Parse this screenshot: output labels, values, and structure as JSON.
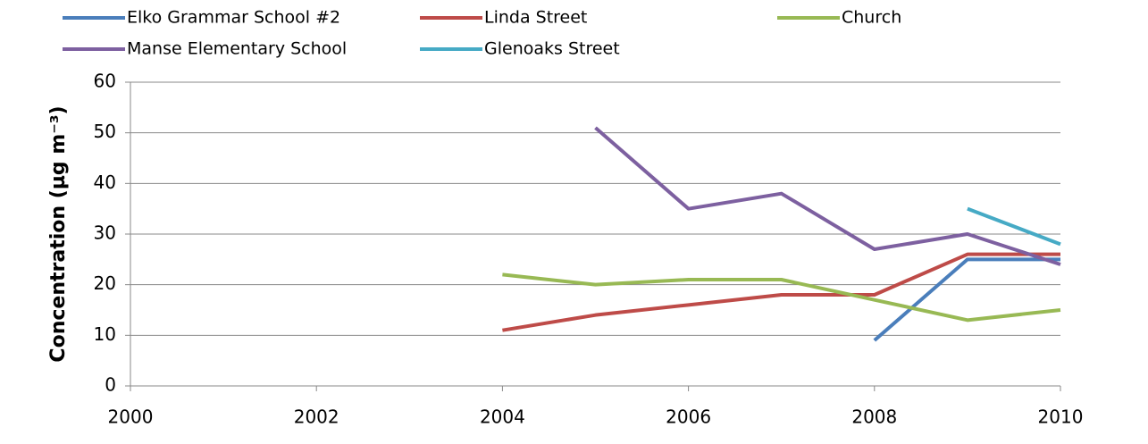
{
  "chart_data": {
    "type": "line",
    "ylabel": "Concentration (µg m⁻³)",
    "x": [
      2004,
      2005,
      2006,
      2007,
      2008,
      2009,
      2010
    ],
    "series": [
      {
        "name": "Elko Grammar School #2",
        "color": "#4a7ebb",
        "values": [
          null,
          null,
          null,
          null,
          9,
          25,
          25
        ]
      },
      {
        "name": "Linda Street",
        "color": "#be4b48",
        "values": [
          11,
          14,
          16,
          18,
          18,
          26,
          26
        ]
      },
      {
        "name": "Church",
        "color": "#98b954",
        "values": [
          22,
          20,
          21,
          21,
          17,
          13,
          15
        ]
      },
      {
        "name": "Manse Elementary School",
        "color": "#7d60a0",
        "values": [
          null,
          51,
          35,
          38,
          27,
          30,
          24
        ]
      },
      {
        "name": "Glenoaks Street",
        "color": "#46aac5",
        "values": [
          null,
          null,
          null,
          null,
          null,
          35,
          28
        ]
      }
    ],
    "xlim": [
      2000,
      2010
    ],
    "xticks": [
      2000,
      2002,
      2004,
      2006,
      2008,
      2010
    ],
    "ylim": [
      0,
      60
    ],
    "yticks": [
      0,
      10,
      20,
      30,
      40,
      50,
      60
    ],
    "grid": true,
    "legend": "top"
  }
}
